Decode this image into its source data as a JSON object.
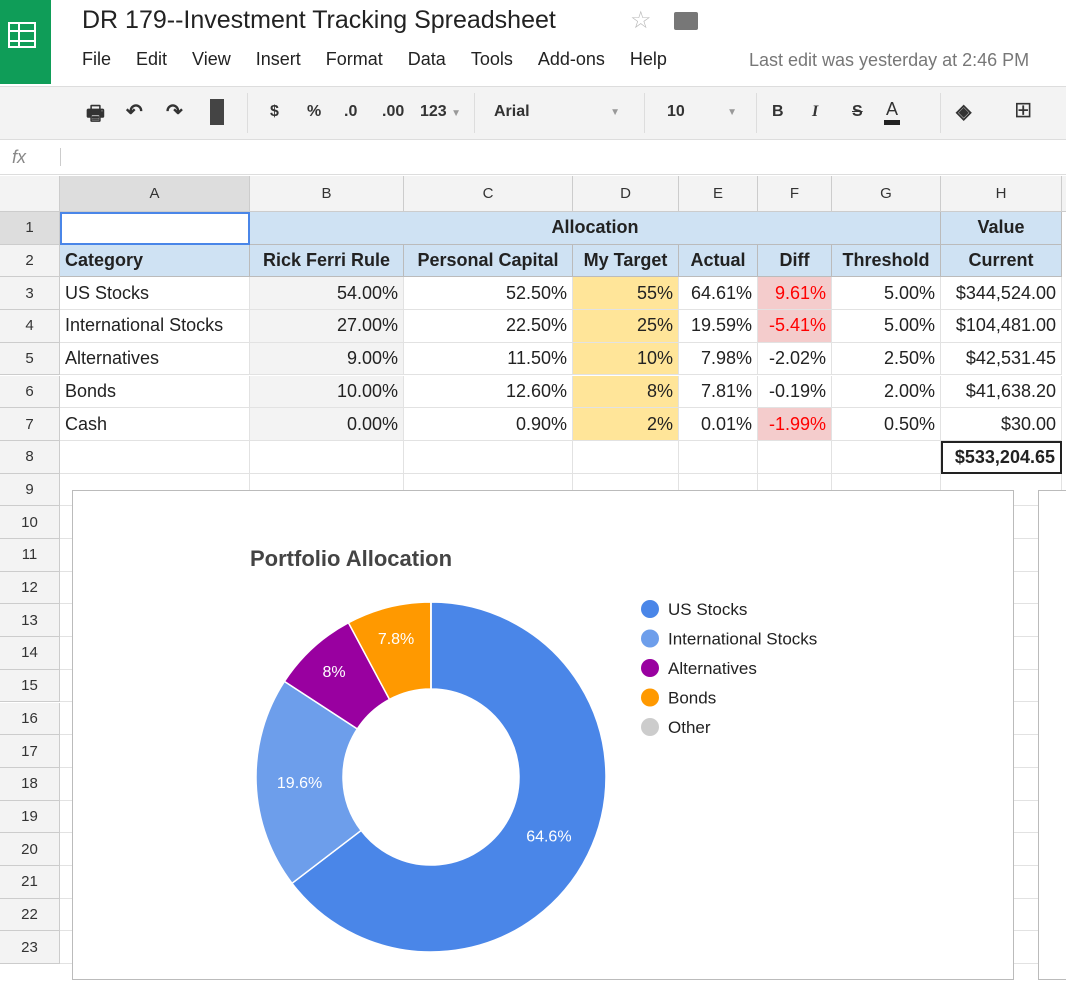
{
  "doc": {
    "title": "DR 179--Investment Tracking Spreadsheet",
    "last_edit": "Last edit was yesterday at 2:46 PM"
  },
  "menu": [
    "File",
    "Edit",
    "View",
    "Insert",
    "Format",
    "Data",
    "Tools",
    "Add-ons",
    "Help"
  ],
  "toolbar": {
    "currency": "$",
    "percent": "%",
    "dec_less": ".0",
    "dec_more": ".00",
    "more_formats": "123",
    "font": "Arial",
    "size": "10",
    "bold": "B",
    "italic": "I",
    "strike": "S",
    "text_color": "A"
  },
  "formula_bar": {
    "label": "fx",
    "value": ""
  },
  "columns": [
    "A",
    "B",
    "C",
    "D",
    "E",
    "F",
    "G",
    "H"
  ],
  "rows": [
    "1",
    "2",
    "3",
    "4",
    "5",
    "6",
    "7",
    "8",
    "9",
    "10",
    "11",
    "12",
    "13",
    "14",
    "15",
    "16",
    "17",
    "18",
    "19",
    "20",
    "21",
    "22",
    "23"
  ],
  "sheet": {
    "row1": {
      "allocation": "Allocation",
      "value": "Value"
    },
    "headers": [
      "Category",
      "Rick Ferri Rule",
      "Personal Capital",
      "My Target",
      "Actual",
      "Diff",
      "Threshold",
      "Current"
    ],
    "data": [
      [
        "US Stocks",
        "54.00%",
        "52.50%",
        "55%",
        "64.61%",
        "9.61%",
        "5.00%",
        "$344,524.00"
      ],
      [
        "International Stocks",
        "27.00%",
        "22.50%",
        "25%",
        "19.59%",
        "-5.41%",
        "5.00%",
        "$104,481.00"
      ],
      [
        "Alternatives",
        "9.00%",
        "11.50%",
        "10%",
        "7.98%",
        "-2.02%",
        "2.50%",
        "$42,531.45"
      ],
      [
        "Bonds",
        "10.00%",
        "12.60%",
        "8%",
        "7.81%",
        "-0.19%",
        "2.00%",
        "$41,638.20"
      ],
      [
        "Cash",
        "0.00%",
        "0.90%",
        "2%",
        "0.01%",
        "-1.99%",
        "0.50%",
        "$30.00"
      ]
    ],
    "diff_flagged": [
      true,
      true,
      false,
      false,
      true
    ],
    "total": "$533,204.65"
  },
  "colors": {
    "header_fill": "#cfe2f3",
    "target_fill": "#ffe599",
    "flag_fill": "#f4cccc",
    "flag_text": "#ff0000"
  },
  "chart_data": {
    "type": "pie",
    "donut": true,
    "title": "Portfolio Allocation",
    "legend_position": "right",
    "categories": [
      "US Stocks",
      "International Stocks",
      "Alternatives",
      "Bonds",
      "Other"
    ],
    "values": [
      64.61,
      19.59,
      7.98,
      7.81,
      0.01
    ],
    "labels": [
      "64.6%",
      "19.6%",
      "8%",
      "7.8%",
      ""
    ],
    "colors": [
      "#4a86e8",
      "#6d9eeb",
      "#9900a0",
      "#ff9900",
      "#cccccc"
    ]
  }
}
